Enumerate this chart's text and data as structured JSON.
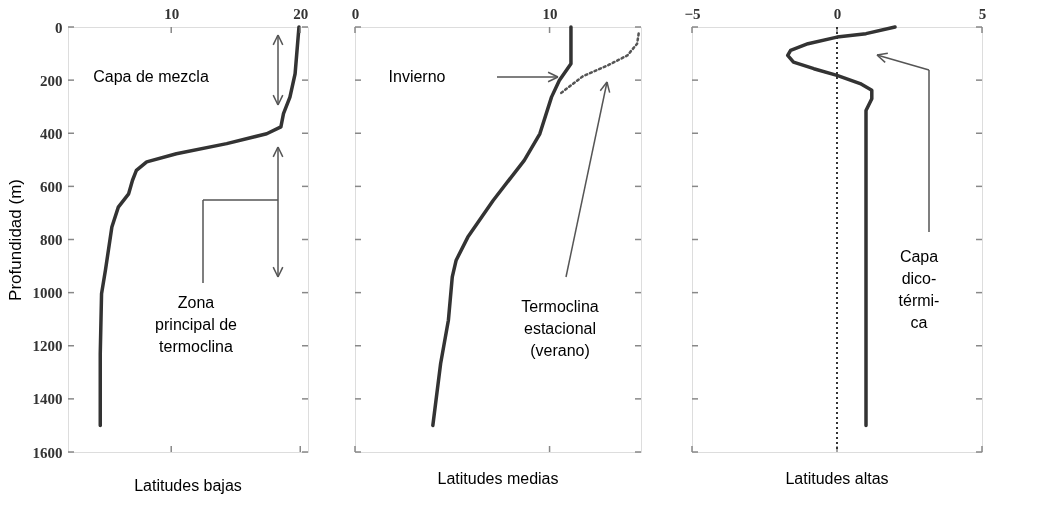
{
  "chart_data": [
    {
      "type": "line",
      "xlabel": "Latitudes bajas",
      "ylabel": "Profundidad (m)",
      "xlim": [
        2,
        20.6
      ],
      "xticks": [
        10,
        20
      ],
      "ylim": [
        1600,
        0
      ],
      "yticks": [
        0,
        200,
        400,
        600,
        800,
        1000,
        1200,
        1400,
        1600
      ],
      "grid": false,
      "series": [
        {
          "color": "#333333",
          "line_style": "solid",
          "x": [
            19.9,
            19.6,
            19.2,
            18.7,
            18.5,
            17.4,
            14.3,
            10.4,
            8.1,
            7.3,
            7.0,
            6.7,
            5.9,
            5.4,
            4.9,
            4.6,
            4.5,
            4.5
          ],
          "values": [
            0,
            176,
            264,
            326,
            376,
            402,
            439,
            477,
            508,
            540,
            577,
            628,
            678,
            753,
            916,
            1004,
            1230,
            1500
          ]
        }
      ],
      "annotations": [
        "Capa de mezcla",
        "Zona\nprincipal de\ntermoclina"
      ]
    },
    {
      "type": "line",
      "xlabel": "Latitudes medias",
      "xlim": [
        0,
        14.7
      ],
      "xticks": [
        0,
        10
      ],
      "ylim": [
        1600,
        0
      ],
      "yticks": [
        0,
        200,
        400,
        600,
        800,
        1000,
        1200,
        1400,
        1600
      ],
      "tick_labels": "x",
      "grid": false,
      "series": [
        {
          "color": "#333333",
          "line_style": "solid",
          "x": [
            11.1,
            11.1,
            10.5,
            10.1,
            9.5,
            8.7,
            7.1,
            5.8,
            5.2,
            5.0,
            4.8,
            4.4,
            4.0
          ],
          "values": [
            0,
            138,
            201,
            264,
            402,
            502,
            653,
            791,
            878,
            941,
            1104,
            1268,
            1500
          ]
        },
        {
          "color": "#555555",
          "line_style": "dotted",
          "x": [
            10.6,
            11.7,
            13.0,
            14.0,
            14.5,
            14.6
          ],
          "values": [
            248,
            186,
            144,
            107,
            63,
            15
          ]
        }
      ],
      "annotations": [
        "Invierno",
        "Termoclina\nestacional\n(verano)"
      ]
    },
    {
      "type": "line",
      "xlabel": "Latitudes altas",
      "xlim": [
        -5,
        5
      ],
      "xticks": [
        -5,
        0,
        5
      ],
      "ylim": [
        1600,
        0
      ],
      "yticks": [
        0,
        200,
        400,
        600,
        800,
        1000,
        1200,
        1400,
        1600
      ],
      "tick_labels": "x",
      "grid": false,
      "series": [
        {
          "color": "#333333",
          "line_style": "solid",
          "x": [
            2.0,
            1.0,
            0.0,
            -1.0,
            -1.6,
            -1.7,
            -1.5,
            -0.8,
            0.0,
            0.8,
            1.2,
            1.2,
            1.0,
            1.0,
            1.0,
            1.0
          ],
          "values": [
            0,
            25,
            38,
            63,
            88,
            107,
            132,
            157,
            182,
            213,
            238,
            270,
            314,
            377,
            602,
            1500
          ]
        }
      ],
      "ref_lines": [
        {
          "axis": "x",
          "value": 0,
          "color": "#333333",
          "line_style": "dotted"
        }
      ],
      "annotations": [
        "Capa\ndico-\ntérmi-\nca"
      ]
    }
  ]
}
